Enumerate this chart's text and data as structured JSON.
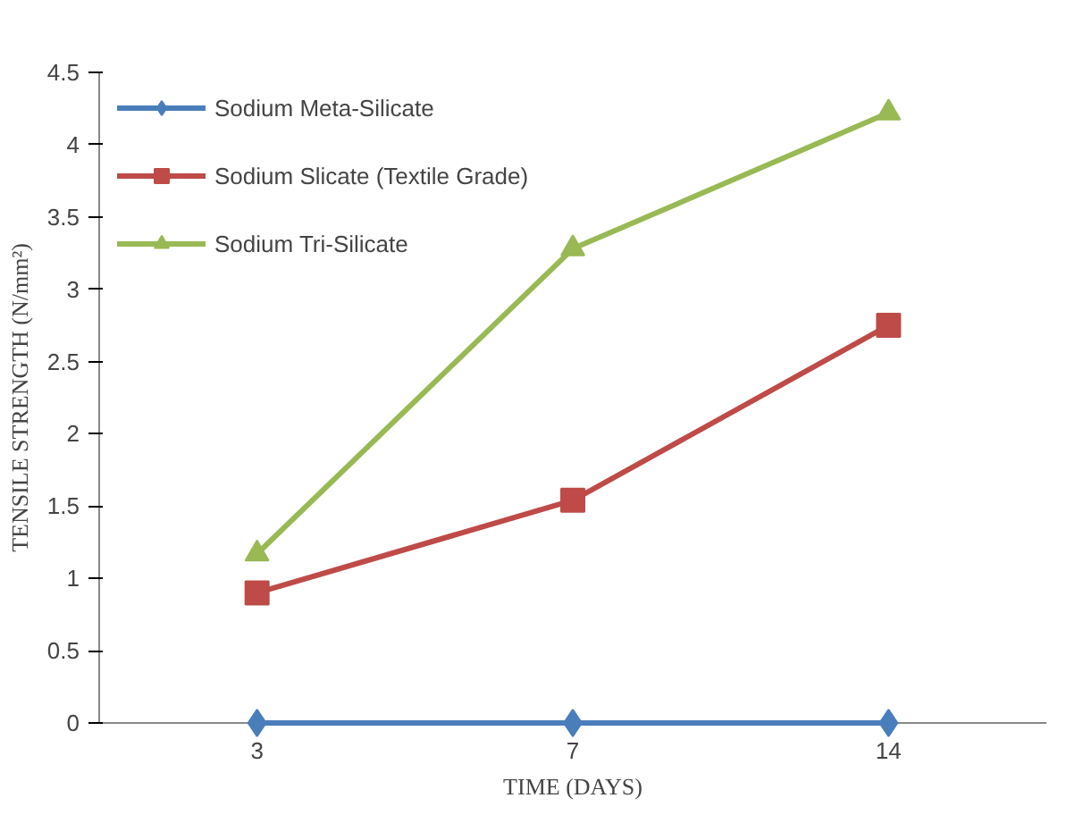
{
  "chart_data": {
    "type": "line",
    "xlabel": "TIME (DAYS)",
    "ylabel": "TENSILE STRENGTH (N/mm²)",
    "categories": [
      "3",
      "7",
      "14"
    ],
    "ylim": [
      0,
      4.5
    ],
    "yticks": [
      0,
      0.5,
      1,
      1.5,
      2,
      2.5,
      3,
      3.5,
      4,
      4.5
    ],
    "grid": false,
    "legend": "top left",
    "series": [
      {
        "name": "Sodium Meta-Silicate",
        "color": "#4a7ebb",
        "marker": "diamond",
        "values": [
          0,
          0,
          0
        ]
      },
      {
        "name": "Sodium Slicate (Textile Grade)",
        "color": "#be4b48",
        "marker": "square",
        "values": [
          0.9,
          1.54,
          2.75
        ]
      },
      {
        "name": "Sodium Tri-Silicate",
        "color": "#98b954",
        "marker": "triangle",
        "values": [
          1.17,
          3.28,
          4.22
        ]
      }
    ]
  }
}
